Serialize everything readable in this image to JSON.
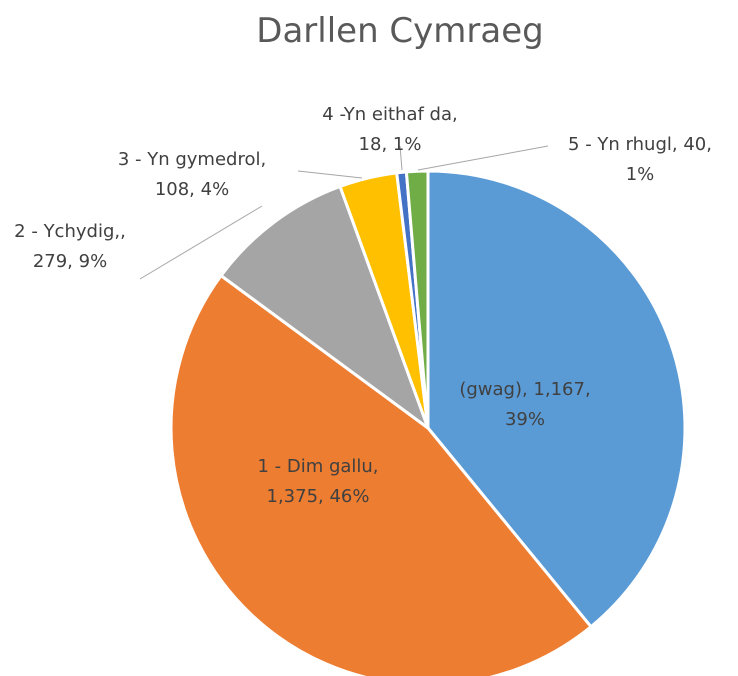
{
  "chart_data": {
    "type": "pie",
    "title": "Darllen Cymraeg",
    "start_angle_deg": 0,
    "direction": "clockwise",
    "slices": [
      {
        "key": "gwag",
        "label": [
          "(gwag), 1,167,",
          "39%"
        ],
        "value": 1167,
        "percent": "39%",
        "color": "#5b9bd5"
      },
      {
        "key": "dim",
        "label": [
          "1 - Dim gallu,",
          "1,375, 46%"
        ],
        "value": 1375,
        "percent": "46%",
        "color": "#ed7d31"
      },
      {
        "key": "ychydig",
        "label": [
          "2 - Ychydig,,",
          "279, 9%"
        ],
        "value": 279,
        "percent": "9%",
        "color": "#a5a5a5"
      },
      {
        "key": "gymedrol",
        "label": [
          "3 - Yn gymedrol,",
          "108, 4%"
        ],
        "value": 108,
        "percent": "4%",
        "color": "#ffc000"
      },
      {
        "key": "eithaf",
        "label": [
          "4 -Yn eithaf da,",
          "18, 1%"
        ],
        "value": 18,
        "percent": "1%",
        "color": "#4472c4"
      },
      {
        "key": "rhugl",
        "label": [
          "5 - Yn rhugl, 40,",
          "1%"
        ],
        "value": 40,
        "percent": "1%",
        "color": "#70ad47"
      }
    ]
  }
}
